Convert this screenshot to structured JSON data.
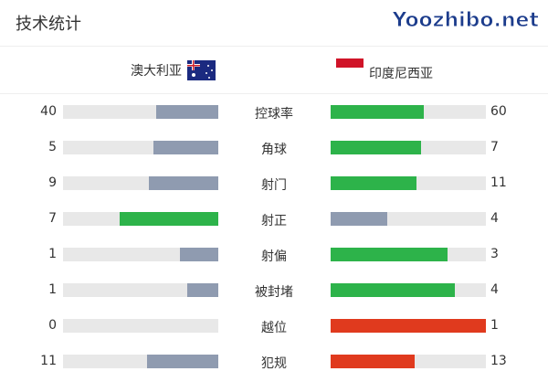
{
  "title": "技术统计",
  "home": {
    "name": "澳大利亚",
    "flag": "australia-flag"
  },
  "away": {
    "name": "印度尼西亚",
    "flag": "indonesia-flag"
  },
  "colors": {
    "gray": "#8f9bb0",
    "green": "#2db34a",
    "red": "#e03a1e",
    "track": "#e8e8e8"
  },
  "stats": [
    {
      "label": "控球率",
      "home": "40",
      "away": "60",
      "home_color": "gray",
      "away_color": "green"
    },
    {
      "label": "角球",
      "home": "5",
      "away": "7",
      "home_color": "gray",
      "away_color": "green"
    },
    {
      "label": "射门",
      "home": "9",
      "away": "11",
      "home_color": "gray",
      "away_color": "green"
    },
    {
      "label": "射正",
      "home": "7",
      "away": "4",
      "home_color": "green",
      "away_color": "gray"
    },
    {
      "label": "射偏",
      "home": "1",
      "away": "3",
      "home_color": "gray",
      "away_color": "green"
    },
    {
      "label": "被封堵",
      "home": "1",
      "away": "4",
      "home_color": "gray",
      "away_color": "green"
    },
    {
      "label": "越位",
      "home": "0",
      "away": "1",
      "home_color": "gray",
      "away_color": "red"
    },
    {
      "label": "犯规",
      "home": "11",
      "away": "13",
      "home_color": "gray",
      "away_color": "red"
    }
  ],
  "watermark": "Yoozhibo.net"
}
